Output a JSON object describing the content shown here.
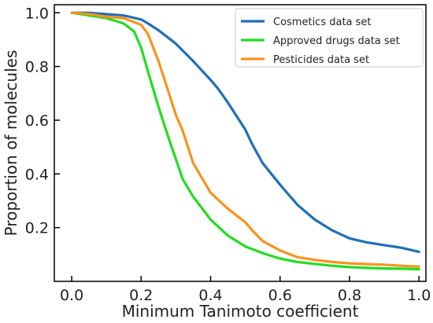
{
  "chart_data": {
    "type": "line",
    "xlabel": "Minimum Tanimoto coefficient",
    "ylabel": "Proportion of molecules",
    "xlim": [
      -0.05,
      1.02
    ],
    "ylim": [
      0.0,
      1.03
    ],
    "x_ticks": [
      0.0,
      0.2,
      0.4,
      0.6,
      0.8,
      1.0
    ],
    "x_tick_labels": [
      "0.0",
      "0.2",
      "0.4",
      "0.6",
      "0.8",
      "1.0"
    ],
    "y_ticks": [
      0.2,
      0.4,
      0.6,
      0.8,
      1.0
    ],
    "y_tick_labels": [
      "0.2",
      "0.4",
      "0.6",
      "0.8",
      "1.0"
    ],
    "grid": false,
    "legend_position": "top-right",
    "series": [
      {
        "name": "Cosmetics data set",
        "color": "#1f6fb8",
        "points": [
          [
            0.0,
            1.0
          ],
          [
            0.05,
            1.0
          ],
          [
            0.1,
            0.995
          ],
          [
            0.15,
            0.99
          ],
          [
            0.2,
            0.975
          ],
          [
            0.22,
            0.96
          ],
          [
            0.25,
            0.935
          ],
          [
            0.28,
            0.905
          ],
          [
            0.3,
            0.885
          ],
          [
            0.35,
            0.82
          ],
          [
            0.4,
            0.75
          ],
          [
            0.42,
            0.72
          ],
          [
            0.45,
            0.665
          ],
          [
            0.5,
            0.565
          ],
          [
            0.52,
            0.51
          ],
          [
            0.55,
            0.44
          ],
          [
            0.6,
            0.36
          ],
          [
            0.65,
            0.285
          ],
          [
            0.7,
            0.23
          ],
          [
            0.75,
            0.19
          ],
          [
            0.8,
            0.16
          ],
          [
            0.85,
            0.145
          ],
          [
            0.9,
            0.135
          ],
          [
            0.95,
            0.125
          ],
          [
            1.0,
            0.11
          ]
        ]
      },
      {
        "name": "Approved drugs data set",
        "color": "#22dd22",
        "points": [
          [
            0.0,
            1.0
          ],
          [
            0.05,
            0.99
          ],
          [
            0.1,
            0.98
          ],
          [
            0.15,
            0.96
          ],
          [
            0.18,
            0.93
          ],
          [
            0.2,
            0.87
          ],
          [
            0.22,
            0.78
          ],
          [
            0.25,
            0.65
          ],
          [
            0.28,
            0.53
          ],
          [
            0.3,
            0.455
          ],
          [
            0.32,
            0.38
          ],
          [
            0.35,
            0.315
          ],
          [
            0.4,
            0.23
          ],
          [
            0.45,
            0.17
          ],
          [
            0.5,
            0.13
          ],
          [
            0.55,
            0.105
          ],
          [
            0.6,
            0.085
          ],
          [
            0.65,
            0.072
          ],
          [
            0.7,
            0.065
          ],
          [
            0.75,
            0.058
          ],
          [
            0.8,
            0.053
          ],
          [
            0.85,
            0.05
          ],
          [
            0.9,
            0.048
          ],
          [
            0.95,
            0.047
          ],
          [
            1.0,
            0.045
          ]
        ]
      },
      {
        "name": "Pesticides data set",
        "color": "#f7931e",
        "points": [
          [
            0.0,
            1.0
          ],
          [
            0.05,
            0.995
          ],
          [
            0.1,
            0.985
          ],
          [
            0.15,
            0.98
          ],
          [
            0.2,
            0.955
          ],
          [
            0.22,
            0.92
          ],
          [
            0.25,
            0.82
          ],
          [
            0.27,
            0.74
          ],
          [
            0.3,
            0.62
          ],
          [
            0.32,
            0.56
          ],
          [
            0.35,
            0.44
          ],
          [
            0.4,
            0.33
          ],
          [
            0.45,
            0.27
          ],
          [
            0.5,
            0.22
          ],
          [
            0.52,
            0.19
          ],
          [
            0.55,
            0.15
          ],
          [
            0.6,
            0.115
          ],
          [
            0.65,
            0.09
          ],
          [
            0.7,
            0.08
          ],
          [
            0.75,
            0.072
          ],
          [
            0.8,
            0.067
          ],
          [
            0.85,
            0.064
          ],
          [
            0.9,
            0.062
          ],
          [
            0.95,
            0.058
          ],
          [
            1.0,
            0.055
          ]
        ]
      }
    ]
  }
}
